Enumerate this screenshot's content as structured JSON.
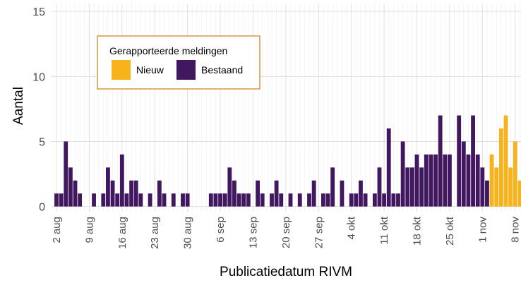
{
  "chart_data": {
    "type": "stacked-bar",
    "x_label": "Publicatiedatum RIVM",
    "y_label": "Aantal",
    "legend_title": "Gerapporteerde meldingen",
    "legend_position": "top-left",
    "grid": true,
    "ylim": [
      -0.4,
      15.6
    ],
    "yticks": [
      0,
      5,
      10,
      15
    ],
    "categories": [
      "2 aug",
      null,
      null,
      null,
      null,
      null,
      null,
      "9 aug",
      null,
      null,
      null,
      null,
      null,
      null,
      "16 aug",
      null,
      null,
      null,
      null,
      null,
      null,
      "23 aug",
      null,
      null,
      null,
      null,
      null,
      null,
      "30 aug",
      null,
      null,
      null,
      null,
      null,
      null,
      "6 sep",
      null,
      null,
      null,
      null,
      null,
      null,
      "13 sep",
      null,
      null,
      null,
      null,
      null,
      null,
      "20 sep",
      null,
      null,
      null,
      null,
      null,
      null,
      "27 sep",
      null,
      null,
      null,
      null,
      null,
      null,
      "4 okt",
      null,
      null,
      null,
      null,
      null,
      null,
      "11 okt",
      null,
      null,
      null,
      null,
      null,
      null,
      "18 okt",
      null,
      null,
      null,
      null,
      null,
      null,
      "25 okt",
      null,
      null,
      null,
      null,
      null,
      null,
      "1 nov",
      null,
      null,
      null,
      null,
      null,
      null,
      "8 nov",
      null
    ],
    "series": [
      {
        "name": "Nieuw",
        "color": "#f6b31b",
        "values": [
          0,
          0,
          0,
          0,
          0,
          0,
          0,
          0,
          0,
          0,
          0,
          0,
          0,
          0,
          0,
          0,
          0,
          0,
          0,
          0,
          0,
          0,
          0,
          0,
          0,
          0,
          0,
          0,
          0,
          0,
          0,
          0,
          0,
          0,
          0,
          0,
          0,
          0,
          0,
          0,
          0,
          0,
          0,
          0,
          0,
          0,
          0,
          0,
          0,
          0,
          0,
          0,
          0,
          0,
          0,
          0,
          0,
          0,
          0,
          0,
          0,
          0,
          0,
          0,
          0,
          0,
          0,
          0,
          0,
          0,
          0,
          0,
          0,
          0,
          0,
          0,
          0,
          0,
          0,
          0,
          0,
          0,
          0,
          0,
          0,
          0,
          0,
          0,
          0,
          0,
          0,
          0,
          0,
          4,
          3,
          6,
          7,
          3,
          5,
          2
        ]
      },
      {
        "name": "Bestaand",
        "color": "#41175f",
        "values": [
          1,
          1,
          5,
          3,
          2,
          1,
          0,
          0,
          1,
          0,
          1,
          3,
          2,
          1,
          4,
          1,
          2,
          2,
          1,
          0,
          1,
          0,
          2,
          1,
          0,
          1,
          0,
          1,
          1,
          0,
          0,
          0,
          0,
          1,
          1,
          1,
          1,
          3,
          2,
          1,
          1,
          1,
          0,
          2,
          1,
          0,
          1,
          2,
          1,
          0,
          1,
          0,
          1,
          0,
          1,
          2,
          0,
          1,
          1,
          3,
          0,
          2,
          0,
          1,
          1,
          2,
          1,
          0,
          1,
          3,
          1,
          6,
          1,
          1,
          5,
          3,
          3,
          4,
          3,
          4,
          4,
          4,
          7,
          4,
          4,
          0,
          7,
          5,
          4,
          7,
          4,
          3,
          2,
          0,
          0,
          0,
          0,
          0,
          0,
          0
        ]
      }
    ]
  }
}
